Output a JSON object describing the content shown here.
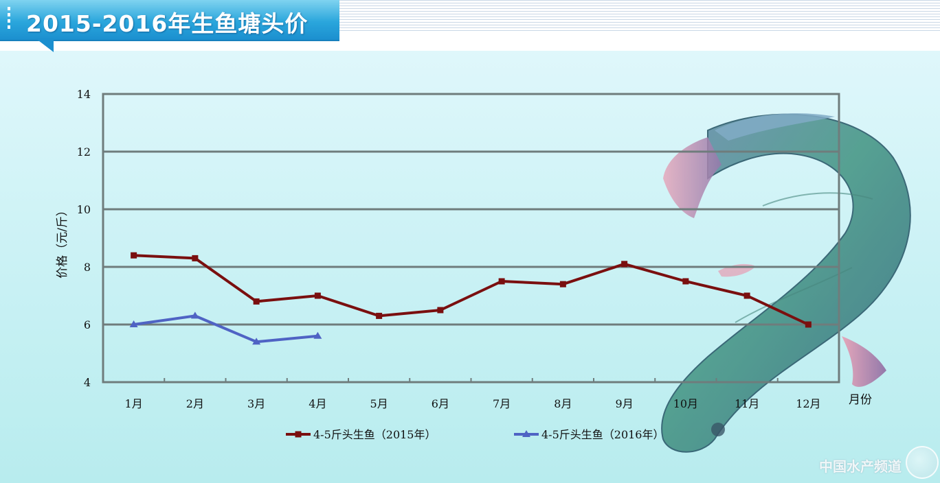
{
  "header": {
    "title": "2015-2016年生鱼塘头价"
  },
  "watermark": {
    "text": "中国水产频道"
  },
  "colors": {
    "series_2015": "#7a0f0f",
    "series_2016": "#4f63c4",
    "grid": "#6f7c7c",
    "title_band": "#2aa6dc"
  },
  "chart_data": {
    "type": "line",
    "title": "2015-2016年生鱼塘头价",
    "xlabel": "月份",
    "ylabel": "价格（元/斤）",
    "ylim": [
      4,
      14
    ],
    "yticks": [
      4,
      6,
      8,
      10,
      12,
      14
    ],
    "grid": "horizontal",
    "legend_position": "bottom",
    "categories": [
      "1月",
      "2月",
      "3月",
      "4月",
      "5月",
      "6月",
      "7月",
      "8月",
      "9月",
      "10月",
      "11月",
      "12月"
    ],
    "series": [
      {
        "name": "4-5斤头生鱼（2015年）",
        "color": "#7a0f0f",
        "marker": "square",
        "values": [
          8.4,
          8.3,
          6.8,
          7.0,
          6.3,
          6.5,
          7.5,
          7.4,
          8.1,
          7.5,
          7.0,
          6.0
        ]
      },
      {
        "name": "4-5斤头生鱼（2016年）",
        "color": "#4f63c4",
        "marker": "triangle",
        "values": [
          6.0,
          6.3,
          5.4,
          5.6,
          null,
          null,
          null,
          null,
          null,
          null,
          null,
          null
        ]
      }
    ]
  }
}
